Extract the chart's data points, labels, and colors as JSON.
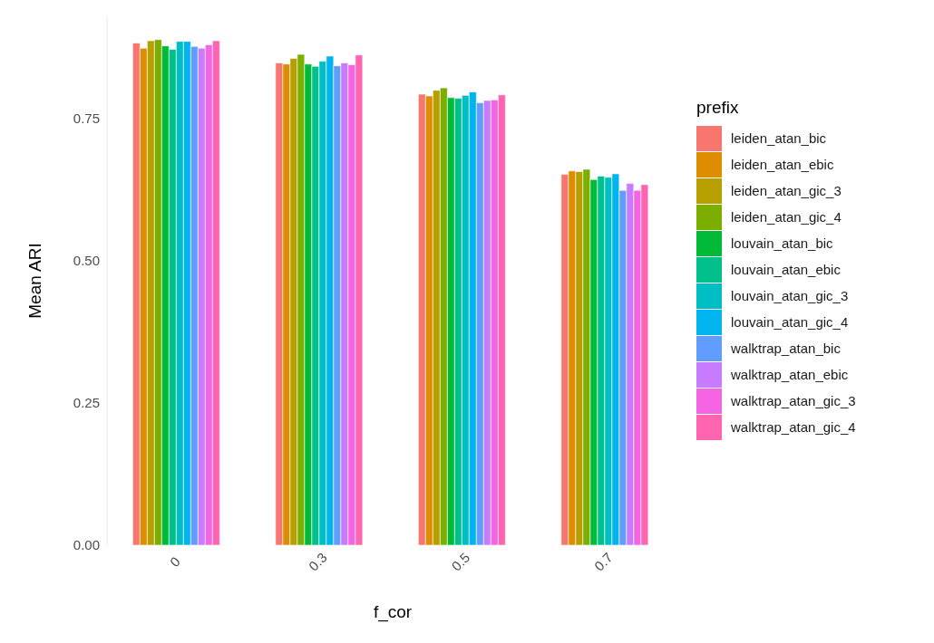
{
  "chart_data": {
    "type": "bar",
    "xlabel": "f_cor",
    "ylabel": "Mean ARI",
    "legend_title": "prefix",
    "legend": "right",
    "grid": false,
    "categories": [
      "0",
      "0.3",
      "0.5",
      "0.7"
    ],
    "ylim": [
      0,
      0.93
    ],
    "yticks": [
      {
        "value": 0,
        "label": "0.00"
      },
      {
        "value": 0.25,
        "label": "0.25"
      },
      {
        "value": 0.5,
        "label": "0.50"
      },
      {
        "value": 0.75,
        "label": "0.75"
      }
    ],
    "series": [
      {
        "name": "leiden_atan_bic",
        "color": "#f8766d",
        "values": [
          0.883,
          0.848,
          0.793,
          0.652
        ]
      },
      {
        "name": "leiden_atan_ebic",
        "color": "#de8c00",
        "values": [
          0.874,
          0.846,
          0.79,
          0.658
        ]
      },
      {
        "name": "leiden_atan_gic_3",
        "color": "#b79f00",
        "values": [
          0.887,
          0.856,
          0.8,
          0.657
        ]
      },
      {
        "name": "leiden_atan_gic_4",
        "color": "#7cae00",
        "values": [
          0.889,
          0.863,
          0.804,
          0.661
        ]
      },
      {
        "name": "louvain_atan_bic",
        "color": "#00ba38",
        "values": [
          0.878,
          0.846,
          0.787,
          0.643
        ]
      },
      {
        "name": "louvain_atan_ebic",
        "color": "#00c08b",
        "values": [
          0.872,
          0.842,
          0.786,
          0.649
        ]
      },
      {
        "name": "louvain_atan_gic_3",
        "color": "#00bfc4",
        "values": [
          0.886,
          0.851,
          0.791,
          0.647
        ]
      },
      {
        "name": "louvain_atan_gic_4",
        "color": "#00b4f0",
        "values": [
          0.886,
          0.86,
          0.797,
          0.653
        ]
      },
      {
        "name": "walktrap_atan_bic",
        "color": "#619cff",
        "values": [
          0.877,
          0.843,
          0.778,
          0.624
        ]
      },
      {
        "name": "walktrap_atan_ebic",
        "color": "#c77cff",
        "values": [
          0.874,
          0.848,
          0.782,
          0.636
        ]
      },
      {
        "name": "walktrap_atan_gic_3",
        "color": "#f564e3",
        "values": [
          0.88,
          0.845,
          0.783,
          0.624
        ]
      },
      {
        "name": "walktrap_atan_gic_4",
        "color": "#ff64b0",
        "values": [
          0.887,
          0.862,
          0.792,
          0.634
        ]
      }
    ]
  }
}
